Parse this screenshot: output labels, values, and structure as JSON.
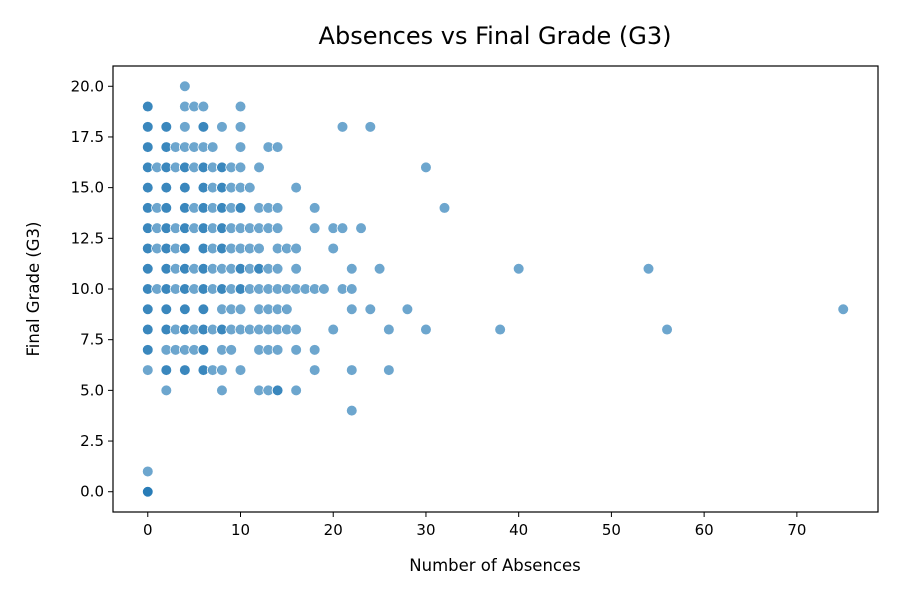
{
  "chart_data": {
    "type": "scatter",
    "title": "Absences vs Final Grade (G3)",
    "xlabel": "Number of Absences",
    "ylabel": "Final Grade (G3)",
    "xlim": [
      -3.75,
      78.75
    ],
    "ylim": [
      -1.0,
      21.0
    ],
    "xticks": [
      0,
      10,
      20,
      30,
      40,
      50,
      60,
      70
    ],
    "xtick_labels": [
      "0",
      "10",
      "20",
      "30",
      "40",
      "50",
      "60",
      "70"
    ],
    "yticks": [
      0,
      2.5,
      5,
      7.5,
      10,
      12.5,
      15,
      17.5,
      20
    ],
    "ytick_labels": [
      "0.0",
      "2.5",
      "5.0",
      "7.5",
      "10.0",
      "12.5",
      "15.0",
      "17.5",
      "20.0"
    ],
    "grid": false,
    "legend": false,
    "marker_color": "#1f77b4",
    "marker_alpha": 0.65,
    "points": [
      [
        0,
        0
      ],
      [
        0,
        0
      ],
      [
        0,
        0
      ],
      [
        0,
        1
      ],
      [
        0,
        6
      ],
      [
        0,
        7
      ],
      [
        0,
        7
      ],
      [
        0,
        8
      ],
      [
        0,
        8
      ],
      [
        0,
        9
      ],
      [
        0,
        9
      ],
      [
        0,
        10
      ],
      [
        0,
        10
      ],
      [
        0,
        11
      ],
      [
        0,
        11
      ],
      [
        0,
        12
      ],
      [
        0,
        12
      ],
      [
        0,
        13
      ],
      [
        0,
        13
      ],
      [
        0,
        14
      ],
      [
        0,
        14
      ],
      [
        0,
        15
      ],
      [
        0,
        15
      ],
      [
        0,
        16
      ],
      [
        0,
        16
      ],
      [
        0,
        17
      ],
      [
        0,
        17
      ],
      [
        0,
        18
      ],
      [
        0,
        18
      ],
      [
        0,
        19
      ],
      [
        0,
        19
      ],
      [
        1,
        10
      ],
      [
        1,
        12
      ],
      [
        1,
        13
      ],
      [
        1,
        14
      ],
      [
        1,
        16
      ],
      [
        2,
        5
      ],
      [
        2,
        6
      ],
      [
        2,
        6
      ],
      [
        2,
        7
      ],
      [
        2,
        8
      ],
      [
        2,
        8
      ],
      [
        2,
        9
      ],
      [
        2,
        9
      ],
      [
        2,
        10
      ],
      [
        2,
        10
      ],
      [
        2,
        11
      ],
      [
        2,
        11
      ],
      [
        2,
        12
      ],
      [
        2,
        12
      ],
      [
        2,
        13
      ],
      [
        2,
        13
      ],
      [
        2,
        14
      ],
      [
        2,
        14
      ],
      [
        2,
        15
      ],
      [
        2,
        15
      ],
      [
        2,
        16
      ],
      [
        2,
        16
      ],
      [
        2,
        17
      ],
      [
        2,
        17
      ],
      [
        2,
        18
      ],
      [
        2,
        18
      ],
      [
        3,
        7
      ],
      [
        3,
        8
      ],
      [
        3,
        10
      ],
      [
        3,
        11
      ],
      [
        3,
        12
      ],
      [
        3,
        13
      ],
      [
        3,
        16
      ],
      [
        3,
        17
      ],
      [
        4,
        6
      ],
      [
        4,
        6
      ],
      [
        4,
        7
      ],
      [
        4,
        8
      ],
      [
        4,
        8
      ],
      [
        4,
        9
      ],
      [
        4,
        9
      ],
      [
        4,
        10
      ],
      [
        4,
        10
      ],
      [
        4,
        11
      ],
      [
        4,
        11
      ],
      [
        4,
        12
      ],
      [
        4,
        12
      ],
      [
        4,
        13
      ],
      [
        4,
        13
      ],
      [
        4,
        14
      ],
      [
        4,
        14
      ],
      [
        4,
        15
      ],
      [
        4,
        15
      ],
      [
        4,
        16
      ],
      [
        4,
        16
      ],
      [
        4,
        17
      ],
      [
        4,
        18
      ],
      [
        4,
        19
      ],
      [
        4,
        20
      ],
      [
        5,
        7
      ],
      [
        5,
        8
      ],
      [
        5,
        10
      ],
      [
        5,
        11
      ],
      [
        5,
        13
      ],
      [
        5,
        14
      ],
      [
        5,
        16
      ],
      [
        5,
        17
      ],
      [
        5,
        19
      ],
      [
        6,
        6
      ],
      [
        6,
        6
      ],
      [
        6,
        7
      ],
      [
        6,
        7
      ],
      [
        6,
        8
      ],
      [
        6,
        8
      ],
      [
        6,
        9
      ],
      [
        6,
        9
      ],
      [
        6,
        10
      ],
      [
        6,
        10
      ],
      [
        6,
        11
      ],
      [
        6,
        11
      ],
      [
        6,
        12
      ],
      [
        6,
        12
      ],
      [
        6,
        13
      ],
      [
        6,
        13
      ],
      [
        6,
        14
      ],
      [
        6,
        14
      ],
      [
        6,
        15
      ],
      [
        6,
        15
      ],
      [
        6,
        16
      ],
      [
        6,
        16
      ],
      [
        6,
        17
      ],
      [
        6,
        18
      ],
      [
        6,
        18
      ],
      [
        6,
        19
      ],
      [
        7,
        6
      ],
      [
        7,
        8
      ],
      [
        7,
        10
      ],
      [
        7,
        11
      ],
      [
        7,
        12
      ],
      [
        7,
        13
      ],
      [
        7,
        14
      ],
      [
        7,
        15
      ],
      [
        7,
        16
      ],
      [
        7,
        17
      ],
      [
        8,
        5
      ],
      [
        8,
        6
      ],
      [
        8,
        7
      ],
      [
        8,
        8
      ],
      [
        8,
        8
      ],
      [
        8,
        9
      ],
      [
        8,
        10
      ],
      [
        8,
        10
      ],
      [
        8,
        11
      ],
      [
        8,
        12
      ],
      [
        8,
        12
      ],
      [
        8,
        13
      ],
      [
        8,
        13
      ],
      [
        8,
        14
      ],
      [
        8,
        14
      ],
      [
        8,
        15
      ],
      [
        8,
        15
      ],
      [
        8,
        16
      ],
      [
        8,
        16
      ],
      [
        8,
        18
      ],
      [
        9,
        7
      ],
      [
        9,
        8
      ],
      [
        9,
        9
      ],
      [
        9,
        10
      ],
      [
        9,
        11
      ],
      [
        9,
        12
      ],
      [
        9,
        13
      ],
      [
        9,
        14
      ],
      [
        9,
        15
      ],
      [
        9,
        16
      ],
      [
        10,
        6
      ],
      [
        10,
        8
      ],
      [
        10,
        9
      ],
      [
        10,
        10
      ],
      [
        10,
        10
      ],
      [
        10,
        11
      ],
      [
        10,
        11
      ],
      [
        10,
        12
      ],
      [
        10,
        13
      ],
      [
        10,
        14
      ],
      [
        10,
        14
      ],
      [
        10,
        15
      ],
      [
        10,
        16
      ],
      [
        10,
        17
      ],
      [
        10,
        18
      ],
      [
        10,
        19
      ],
      [
        11,
        8
      ],
      [
        11,
        10
      ],
      [
        11,
        11
      ],
      [
        11,
        12
      ],
      [
        11,
        13
      ],
      [
        11,
        15
      ],
      [
        12,
        5
      ],
      [
        12,
        7
      ],
      [
        12,
        8
      ],
      [
        12,
        9
      ],
      [
        12,
        10
      ],
      [
        12,
        11
      ],
      [
        12,
        11
      ],
      [
        12,
        12
      ],
      [
        12,
        13
      ],
      [
        12,
        14
      ],
      [
        12,
        16
      ],
      [
        13,
        5
      ],
      [
        13,
        7
      ],
      [
        13,
        8
      ],
      [
        13,
        9
      ],
      [
        13,
        10
      ],
      [
        13,
        11
      ],
      [
        13,
        13
      ],
      [
        13,
        14
      ],
      [
        13,
        17
      ],
      [
        14,
        5
      ],
      [
        14,
        5
      ],
      [
        14,
        7
      ],
      [
        14,
        8
      ],
      [
        14,
        9
      ],
      [
        14,
        10
      ],
      [
        14,
        11
      ],
      [
        14,
        12
      ],
      [
        14,
        13
      ],
      [
        14,
        14
      ],
      [
        14,
        17
      ],
      [
        15,
        8
      ],
      [
        15,
        9
      ],
      [
        15,
        10
      ],
      [
        15,
        12
      ],
      [
        16,
        5
      ],
      [
        16,
        7
      ],
      [
        16,
        8
      ],
      [
        16,
        10
      ],
      [
        16,
        11
      ],
      [
        16,
        12
      ],
      [
        16,
        15
      ],
      [
        17,
        10
      ],
      [
        18,
        6
      ],
      [
        18,
        7
      ],
      [
        18,
        10
      ],
      [
        18,
        13
      ],
      [
        18,
        14
      ],
      [
        19,
        10
      ],
      [
        20,
        8
      ],
      [
        20,
        12
      ],
      [
        20,
        13
      ],
      [
        21,
        10
      ],
      [
        21,
        13
      ],
      [
        21,
        18
      ],
      [
        22,
        4
      ],
      [
        22,
        6
      ],
      [
        22,
        9
      ],
      [
        22,
        10
      ],
      [
        22,
        11
      ],
      [
        23,
        13
      ],
      [
        24,
        9
      ],
      [
        24,
        18
      ],
      [
        25,
        11
      ],
      [
        26,
        6
      ],
      [
        26,
        8
      ],
      [
        28,
        9
      ],
      [
        30,
        8
      ],
      [
        30,
        16
      ],
      [
        32,
        14
      ],
      [
        38,
        8
      ],
      [
        40,
        11
      ],
      [
        54,
        11
      ],
      [
        56,
        8
      ],
      [
        75,
        9
      ]
    ]
  }
}
